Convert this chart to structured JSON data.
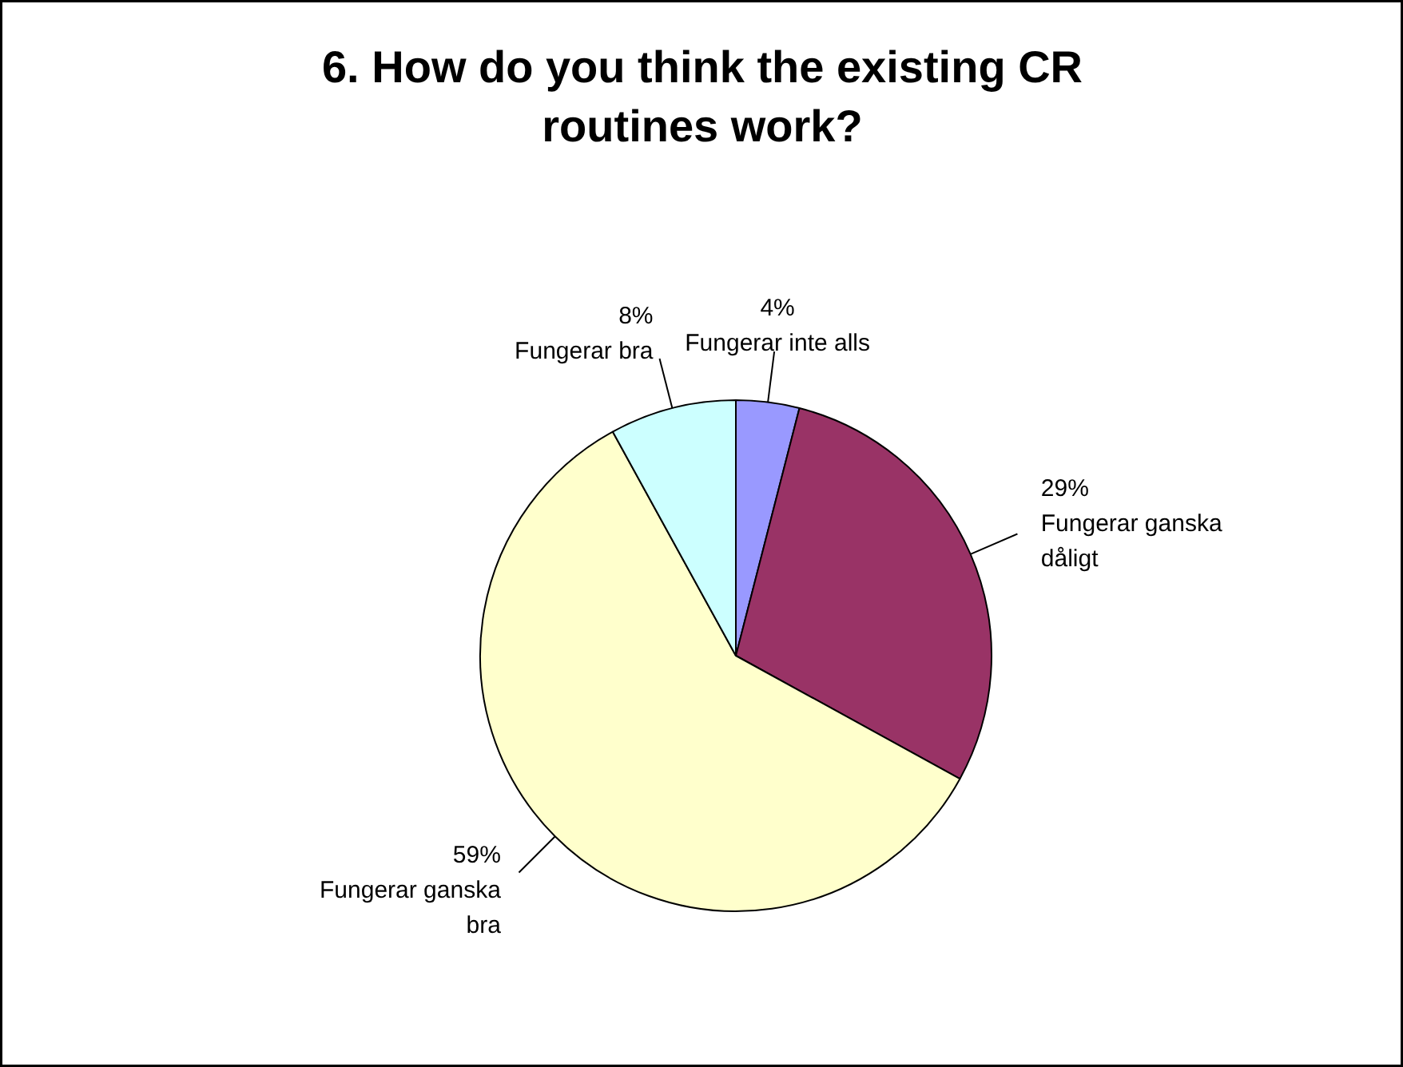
{
  "chart_data": {
    "type": "pie",
    "title": "6. How do you think the existing CR routines work?",
    "categories": [
      "Fungerar inte alls",
      "Fungerar ganska dåligt",
      "Fungerar ganska bra",
      "Fungerar bra"
    ],
    "values": [
      4,
      29,
      59,
      8
    ],
    "colors": [
      "#9999ff",
      "#993366",
      "#ffffcc",
      "#ccffff"
    ],
    "value_labels": [
      "4%",
      "29%",
      "59%",
      "8%"
    ]
  }
}
